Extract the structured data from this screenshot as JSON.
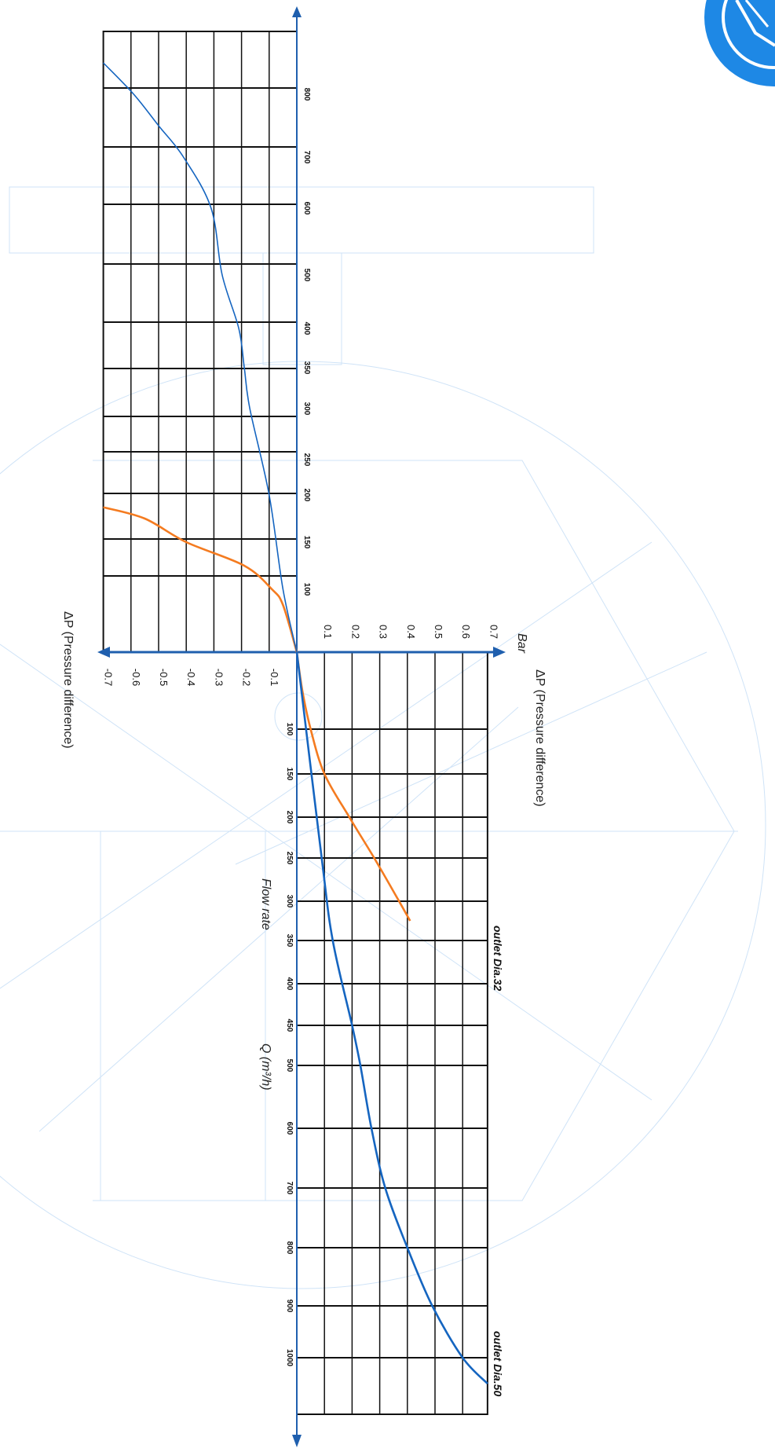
{
  "chart_data": {
    "type": "line",
    "orientation": "rotated 90deg clockwise",
    "colors": {
      "grid": "#111111",
      "axis": "#1f5fae",
      "watermark": "#cfe3f7",
      "logo": "#1e88e5"
    },
    "pressure_axis": {
      "unit_label": "Bar",
      "label_positive": "ΔP (Pressure difference)",
      "label_negative": "ΔP (Pressure difference)",
      "ticks_positive": [
        "0.1",
        "0.2",
        "0.3",
        "0.4",
        "0.5",
        "0.6",
        "0.7"
      ],
      "ticks_negative": [
        "-0.1",
        "-0.2",
        "-0.3",
        "-0.4",
        "-0.5",
        "-0.6",
        "-0.7"
      ],
      "range": [
        -0.7,
        0.7
      ]
    },
    "flow_axis": {
      "label_name": "Flow rate",
      "label_unit": "Q (m³/h)",
      "ticks_negative_side": [
        "100",
        "150",
        "200",
        "250",
        "300",
        "350",
        "400",
        "500",
        "600",
        "700",
        "800"
      ],
      "ticks_positive_side": [
        "100",
        "150",
        "200",
        "250",
        "300",
        "350",
        "400",
        "450",
        "500",
        "600",
        "700",
        "800",
        "900",
        "1000"
      ]
    },
    "series": [
      {
        "name": "outlet Dia.32",
        "color": "#f47b20",
        "positive_side": [
          [
            0,
            0
          ],
          [
            50,
            0.02
          ],
          [
            100,
            0.05
          ],
          [
            150,
            0.1
          ],
          [
            200,
            0.19
          ],
          [
            250,
            0.28
          ],
          [
            300,
            0.37
          ],
          [
            325,
            0.41
          ]
        ],
        "negative_side": [
          [
            0,
            0
          ],
          [
            75,
            -0.05
          ],
          [
            100,
            -0.09
          ],
          [
            125,
            -0.19
          ],
          [
            150,
            -0.4
          ],
          [
            175,
            -0.55
          ],
          [
            187,
            -0.7
          ]
        ]
      },
      {
        "name": "outlet Dia.50",
        "color": "#1565c0",
        "positive_side": [
          [
            0,
            0
          ],
          [
            250,
            0.09
          ],
          [
            350,
            0.13
          ],
          [
            450,
            0.2
          ],
          [
            500,
            0.23
          ],
          [
            600,
            0.27
          ],
          [
            700,
            0.32
          ],
          [
            800,
            0.4
          ],
          [
            900,
            0.49
          ],
          [
            1000,
            0.6
          ],
          [
            1050,
            0.69
          ]
        ],
        "negative_side": [
          [
            0,
            0
          ],
          [
            100,
            -0.05
          ],
          [
            200,
            -0.1
          ],
          [
            300,
            -0.17
          ],
          [
            350,
            -0.19
          ],
          [
            400,
            -0.21
          ],
          [
            500,
            -0.27
          ],
          [
            600,
            -0.31
          ],
          [
            700,
            -0.41
          ],
          [
            750,
            -0.5
          ],
          [
            800,
            -0.59
          ],
          [
            850,
            -0.7
          ]
        ]
      }
    ],
    "grid": true
  }
}
